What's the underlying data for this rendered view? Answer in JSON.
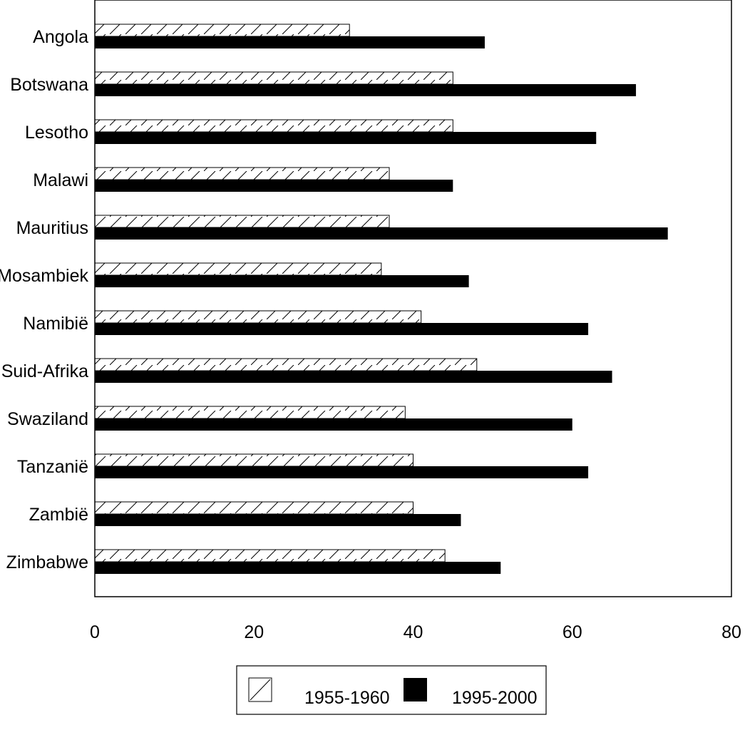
{
  "chart_data": {
    "type": "bar",
    "orientation": "horizontal",
    "categories": [
      "Angola",
      "Botswana",
      "Lesotho",
      "Malawi",
      "Mauritius",
      "Mosambiek",
      "Namibië",
      "Suid-Afrika",
      "Swaziland",
      "Tanzanië",
      "Zambië",
      "Zimbabwe"
    ],
    "series": [
      {
        "name": "1955-1960",
        "style": "hatched",
        "values": [
          32,
          45,
          45,
          37,
          37,
          36,
          41,
          48,
          39,
          40,
          40,
          44
        ]
      },
      {
        "name": "1995-2000",
        "style": "solid",
        "values": [
          49,
          68,
          63,
          45,
          72,
          47,
          62,
          65,
          60,
          62,
          46,
          51
        ]
      }
    ],
    "xlim": [
      0,
      80
    ],
    "x_ticks": [
      "0",
      "20",
      "40",
      "60",
      "80"
    ],
    "title": "",
    "xlabel": "",
    "ylabel": "",
    "legend": {
      "placement": "bottom-center"
    },
    "grid": false,
    "colors": {
      "solid": "#000000",
      "hatch": "#000000",
      "background": "#ffffff"
    }
  }
}
